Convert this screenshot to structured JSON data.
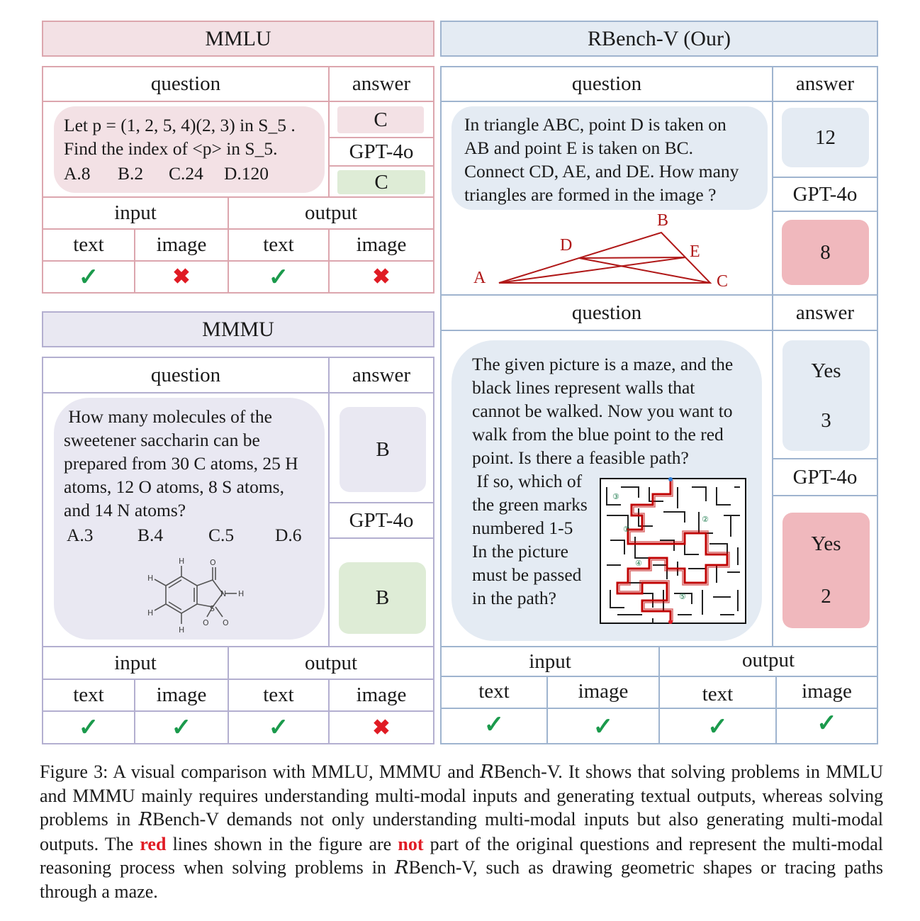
{
  "mmlu": {
    "title": "MMLU",
    "question_header": "question",
    "answer_header": "answer",
    "question_lines": [
      "Let p = (1, 2, 5, 4)(2, 3) in S_5 .",
      "Find the index of <p> in S_5."
    ],
    "options": [
      "A.8",
      "B.2",
      "C.24",
      "D.120"
    ],
    "answer": "C",
    "model": "GPT-4o",
    "model_answer": "C",
    "input": "input",
    "output": "output",
    "text": "text",
    "image": "image",
    "marks": [
      "✓",
      "✖",
      "✓",
      "✖"
    ]
  },
  "mmmu": {
    "title": "MMMU",
    "question_header": "question",
    "answer_header": "answer",
    "question_lines": [
      " How many molecules of the",
      "sweetener saccharin can be",
      "prepared from 30 C atoms, 25 H",
      "atoms, 12 O atoms, 8 S atoms,",
      "and 14 N atoms?"
    ],
    "options": [
      "A.3",
      "B.4",
      "C.5",
      "D.6"
    ],
    "answer": "B",
    "model": "GPT-4o",
    "model_answer": "B",
    "input": "input",
    "output": "output",
    "text": "text",
    "image": "image",
    "marks": [
      "✓",
      "✓",
      "✓",
      "✖"
    ],
    "molecule_atoms": {
      "h": "H",
      "o": "O",
      "n": "N",
      "s": "S"
    }
  },
  "rbench": {
    "title": "RBench-V  (Our)",
    "q1_header": "question",
    "a1_header": "answer",
    "q1_lines": [
      "In triangle ABC, point D is taken on",
      "AB and point E is taken on BC.",
      "Connect CD, AE, and DE. How many",
      "triangles are formed in the image ?"
    ],
    "triangle_labels": {
      "a": "A",
      "b": "B",
      "c": "C",
      "d": "D",
      "e": "E"
    },
    "a1": "12",
    "model": "GPT-4o",
    "m1": "8",
    "q2_header": "question",
    "a2_header": "answer",
    "q2_lines": [
      "The given picture is a maze, and the",
      "black lines represent walls that",
      "cannot be walked. Now you want to",
      "walk from the blue point to the red",
      "point. Is there a feasible path?"
    ],
    "q2_side_lines": [
      " If so, which of",
      "the green marks",
      "numbered 1-5",
      "In the picture",
      "must be passed",
      "in the path?"
    ],
    "maze_marks": [
      "③",
      "②",
      "①",
      "④",
      "⑤"
    ],
    "a2_line1": "Yes",
    "a2_line2": "3",
    "m2_line1": "Yes",
    "m2_line2": "2",
    "input": "input",
    "output": "output",
    "text": "text",
    "image": "image",
    "marks": [
      "✓",
      "✓",
      "✓",
      "✓"
    ]
  },
  "caption": {
    "p1": "Figure 3: A visual comparison with MMLU, MMMU and ",
    "r1": "R",
    "p2": "Bench-V. It shows that solving problems in MMLU and MMMU mainly requires understanding multi-modal inputs and generating textual outputs, whereas solving problems in ",
    "r2": "R",
    "p3": "Bench-V demands not only understanding multi-modal inputs but also generating multi-modal outputs. The ",
    "red1": "red",
    "p4": " lines shown in the figure are ",
    "red2": "not",
    "p5": " part of the original questions and represent the multi-modal reasoning process when solving problems in ",
    "r3": "R",
    "p6": "Bench-V, such as drawing geometric shapes or tracing paths through a maze."
  },
  "colors": {
    "pink_border": "#dca6ae",
    "lavender_border": "#b3afd0",
    "blue_border": "#9fb4cf",
    "red_path": "#c00000",
    "check_green": "#1b9a4c",
    "cross_red": "#e01b24"
  }
}
